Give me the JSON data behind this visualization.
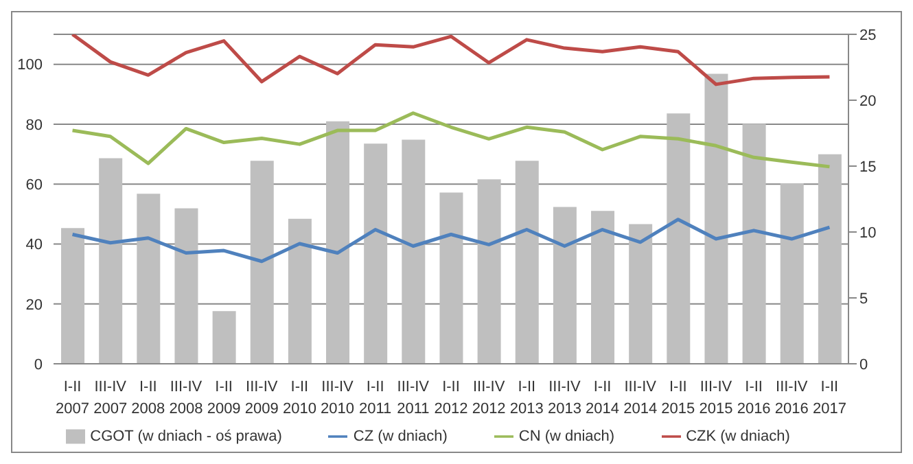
{
  "chart_data": {
    "type": "bar",
    "categories": [
      "I-II 2007",
      "III-IV 2007",
      "I-II 2008",
      "III-IV 2008",
      "I-II 2009",
      "III-IV 2009",
      "I-II 2010",
      "III-IV 2010",
      "I-II 2011",
      "III-IV 2011",
      "I-II 2012",
      "III-IV 2012",
      "I-II 2013",
      "III-IV 2013",
      "I-II 2014",
      "III-IV 2014",
      "I-II 2015",
      "III-IV 2015",
      "I-II 2016",
      "III-IV 2016",
      "I-II 2017"
    ],
    "series": [
      {
        "name": "CGOT (w dniach - oś prawa)",
        "axis": "y2",
        "color": "#bfbfbf",
        "values": [
          10.3,
          15.6,
          12.9,
          11.8,
          4.0,
          15.4,
          11.0,
          18.4,
          16.7,
          17.0,
          13.0,
          14.0,
          15.4,
          11.9,
          11.6,
          10.6,
          19.0,
          22.0,
          18.2,
          13.7,
          15.9
        ]
      },
      {
        "name": "CZ (w dniach)",
        "type": "line",
        "color": "#4f81bd",
        "values": [
          43.2,
          40.4,
          42.0,
          37.0,
          37.8,
          34.2,
          40.1,
          37.0,
          44.8,
          39.3,
          43.2,
          39.8,
          44.8,
          39.3,
          44.8,
          40.6,
          48.2,
          41.7,
          44.5,
          41.7,
          45.6
        ]
      },
      {
        "name": "CN (w dniach)",
        "type": "line",
        "color": "#9bbb59",
        "values": [
          77.9,
          75.9,
          66.9,
          78.5,
          73.9,
          75.3,
          73.3,
          77.9,
          77.9,
          83.7,
          79.0,
          75.1,
          79.0,
          77.4,
          71.5,
          75.9,
          75.1,
          72.8,
          68.9,
          67.3,
          65.8
        ]
      },
      {
        "name": "CZK (w dniach)",
        "type": "line",
        "color": "#be4b48",
        "values": [
          110,
          100.8,
          96.4,
          103.9,
          107.8,
          94.2,
          102.6,
          96.9,
          106.5,
          105.8,
          109.3,
          100.5,
          108.2,
          105.4,
          104.2,
          105.8,
          104.2,
          93.3,
          95.3,
          95.6,
          95.8
        ]
      }
    ],
    "ylim": [
      0,
      110
    ],
    "yticks": [
      0,
      20,
      40,
      60,
      80,
      100
    ],
    "y2lim": [
      0,
      25
    ],
    "y2ticks": [
      0,
      5,
      10,
      15,
      20,
      25
    ],
    "grid": "y",
    "legend": "bottom",
    "marker": "none",
    "line_style": "solid"
  }
}
